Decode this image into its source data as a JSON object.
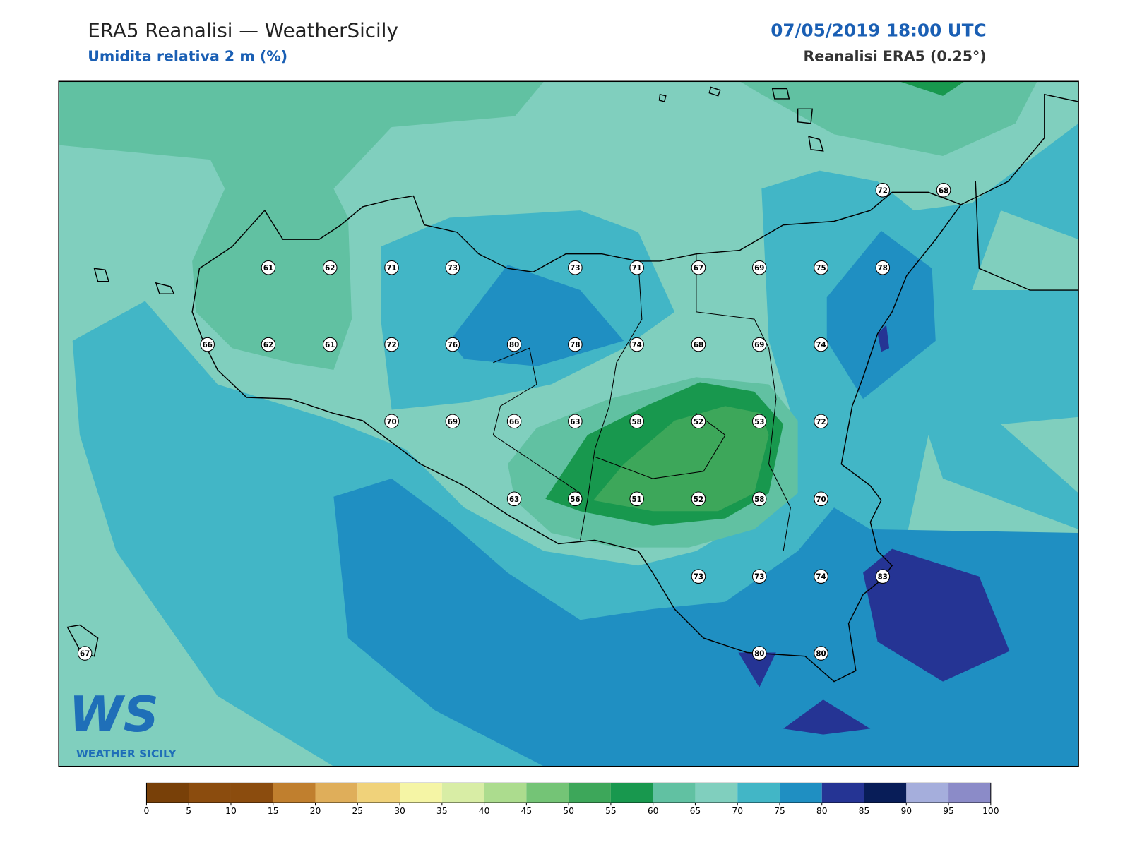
{
  "header": {
    "title": "ERA5 Reanalisi — WeatherSicily",
    "subtitle": "Umidita relativa 2 m (%)",
    "datetime": "07/05/2019 18:00 UTC",
    "source": "Reanalisi ERA5 (0.25°)"
  },
  "points": {
    "values": [
      72,
      68,
      61,
      62,
      71,
      73,
      73,
      71,
      67,
      69,
      75,
      78,
      66,
      62,
      61,
      72,
      76,
      80,
      78,
      74,
      68,
      69,
      74,
      70,
      69,
      66,
      63,
      58,
      52,
      53,
      72,
      63,
      56,
      51,
      52,
      58,
      70,
      73,
      73,
      74,
      83,
      67,
      80,
      80
    ]
  },
  "colorbar": {
    "ticks": [
      0,
      5,
      10,
      15,
      20,
      25,
      30,
      35,
      40,
      45,
      50,
      55,
      60,
      65,
      70,
      75,
      80,
      85,
      90,
      95,
      100
    ],
    "colors": [
      "#784008",
      "#8b4c0e",
      "#8b4c0e",
      "#c07f2e",
      "#dfae5a",
      "#f0d27a",
      "#f5f5a5",
      "#d8eda5",
      "#acdc8e",
      "#74c476",
      "#3da75a",
      "#18984e",
      "#61c1a2",
      "#80cfbe",
      "#42b6c6",
      "#1f8fc2",
      "#253494",
      "#081d58",
      "#a5aedc",
      "#8b8bc8"
    ]
  },
  "logo": {
    "initials": "WS",
    "name": "WEATHER SICILY"
  }
}
